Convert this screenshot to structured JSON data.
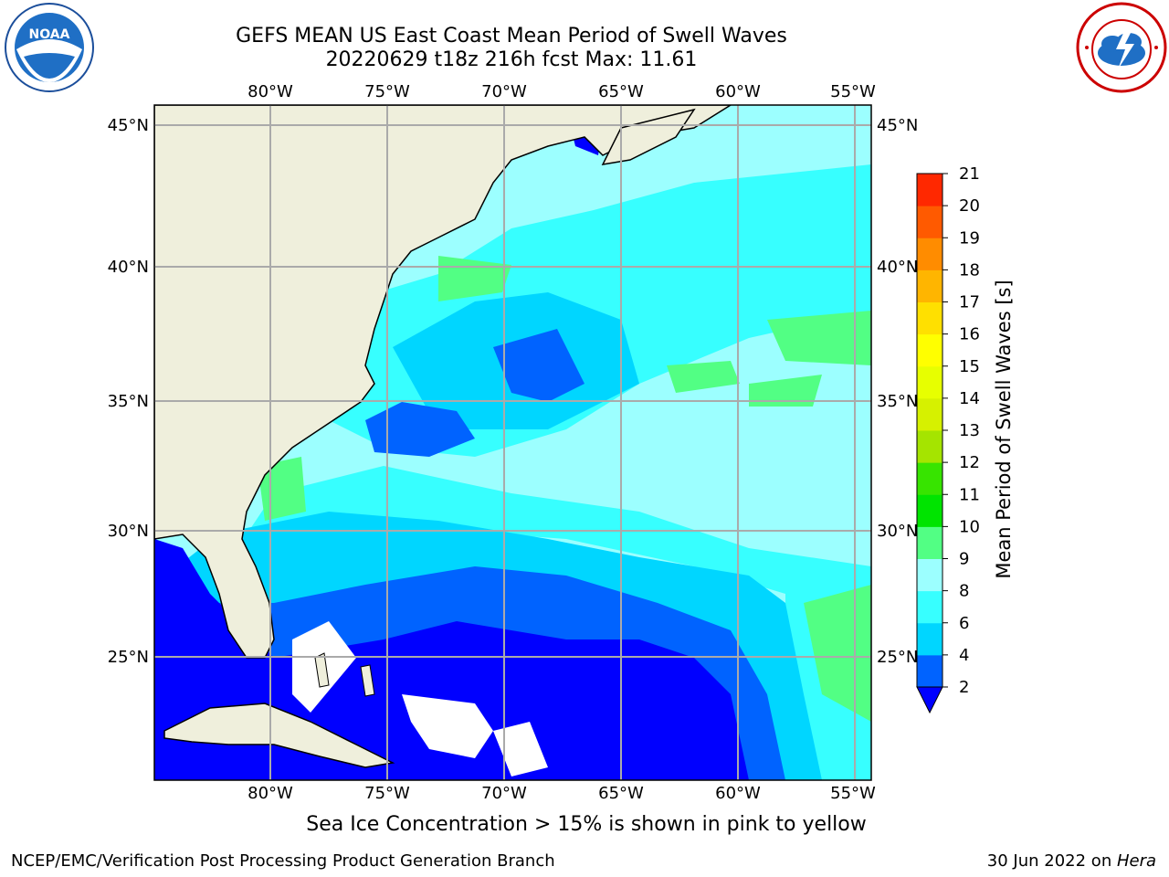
{
  "header": {
    "title_line1": "GEFS MEAN US East Coast Mean Period of Swell Waves",
    "title_line2": "20220629 t18z 216h fcst   Max: 11.61"
  },
  "map": {
    "lon_labels": [
      "80°W",
      "75°W",
      "70°W",
      "65°W",
      "60°W",
      "55°W"
    ],
    "lat_labels": [
      "45°N",
      "40°N",
      "35°N",
      "30°N",
      "25°N"
    ],
    "lon_range": [
      -85,
      -54
    ],
    "lat_range": [
      20.5,
      46
    ],
    "land_color": "#efefdc",
    "missing_color": "#ffffff"
  },
  "colorbar": {
    "label": "Mean Period of Swell Waves [s]",
    "ticks": [
      "2",
      "4",
      "6",
      "8",
      "9",
      "10",
      "11",
      "12",
      "13",
      "14",
      "15",
      "16",
      "17",
      "18",
      "19",
      "20",
      "21"
    ],
    "colors": [
      "#0063ff",
      "#00d6ff",
      "#37ffff",
      "#9cffff",
      "#52ff84",
      "#00e400",
      "#37e400",
      "#a5e400",
      "#d6f100",
      "#e7ff00",
      "#ffff00",
      "#ffe000",
      "#ffb500",
      "#ff8c00",
      "#ff5a00",
      "#ff2800"
    ],
    "under_color": "#0000ff"
  },
  "logos": {
    "left": "noaa-logo",
    "right": "nws-logo"
  },
  "footer": {
    "note": "Sea Ice Concentration > 15% is shown in pink to yellow",
    "left": "NCEP/EMC/Verification Post Processing Product Generation Branch",
    "right_date": "30 Jun 2022 on ",
    "right_machine": "Hera"
  }
}
